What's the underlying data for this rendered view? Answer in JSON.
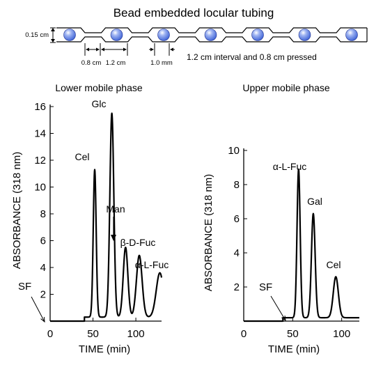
{
  "diagram": {
    "title": "Bead embedded locular tubing",
    "height_label": "0.15 cm",
    "pressed_label": "0.8 cm",
    "interval_label": "1.2 cm",
    "gap_label": "1.0 mm",
    "caption": "1.2 cm interval and 0.8 cm pressed",
    "bead_count": 7,
    "bead_color": "#3f63d6"
  },
  "chart_data": [
    {
      "type": "line",
      "title": "Lower mobile phase",
      "title_color": "#1f2fa8",
      "xlabel": "TIME (min)",
      "ylabel": "ABSORBANCE (318 nm)",
      "xlim": [
        0,
        130
      ],
      "ylim": [
        0,
        16
      ],
      "xticks": [
        0,
        50,
        100
      ],
      "yticks": [
        2,
        4,
        6,
        8,
        10,
        12,
        14,
        16
      ],
      "baseline": 0.3,
      "peaks": [
        {
          "label": "Cel",
          "time": 52,
          "height": 11.3,
          "width": 1.7
        },
        {
          "label": "Glc",
          "time": 72,
          "height": 15.5,
          "width": 2.3
        },
        {
          "label": "Man",
          "time": 88,
          "height": 5.5,
          "width": 2.7
        },
        {
          "label": "β-D-Fuc",
          "time": 104,
          "height": 4.9,
          "width": 3.3
        },
        {
          "label": "α-L-Fuc",
          "time": 128,
          "height": 3.6,
          "width": 4.2
        }
      ],
      "annotations": [
        "SF"
      ]
    },
    {
      "type": "line",
      "title": "Upper mobile phase",
      "title_color": "#cc1111",
      "xlabel": "TIME (min)",
      "ylabel": "ABSORBANCE (318 nm)",
      "xlim": [
        0,
        118
      ],
      "ylim": [
        0,
        10
      ],
      "xticks": [
        0,
        50,
        100
      ],
      "yticks": [
        2,
        4,
        6,
        8,
        10
      ],
      "baseline": 0.2,
      "peaks": [
        {
          "label": "α-L-Fuc",
          "time": 56,
          "height": 8.9,
          "width": 1.6
        },
        {
          "label": "Gal",
          "time": 71,
          "height": 6.3,
          "width": 1.9
        },
        {
          "label": "Cel",
          "time": 94,
          "height": 2.6,
          "width": 2.6
        }
      ],
      "annotations": [
        "SF"
      ]
    }
  ]
}
